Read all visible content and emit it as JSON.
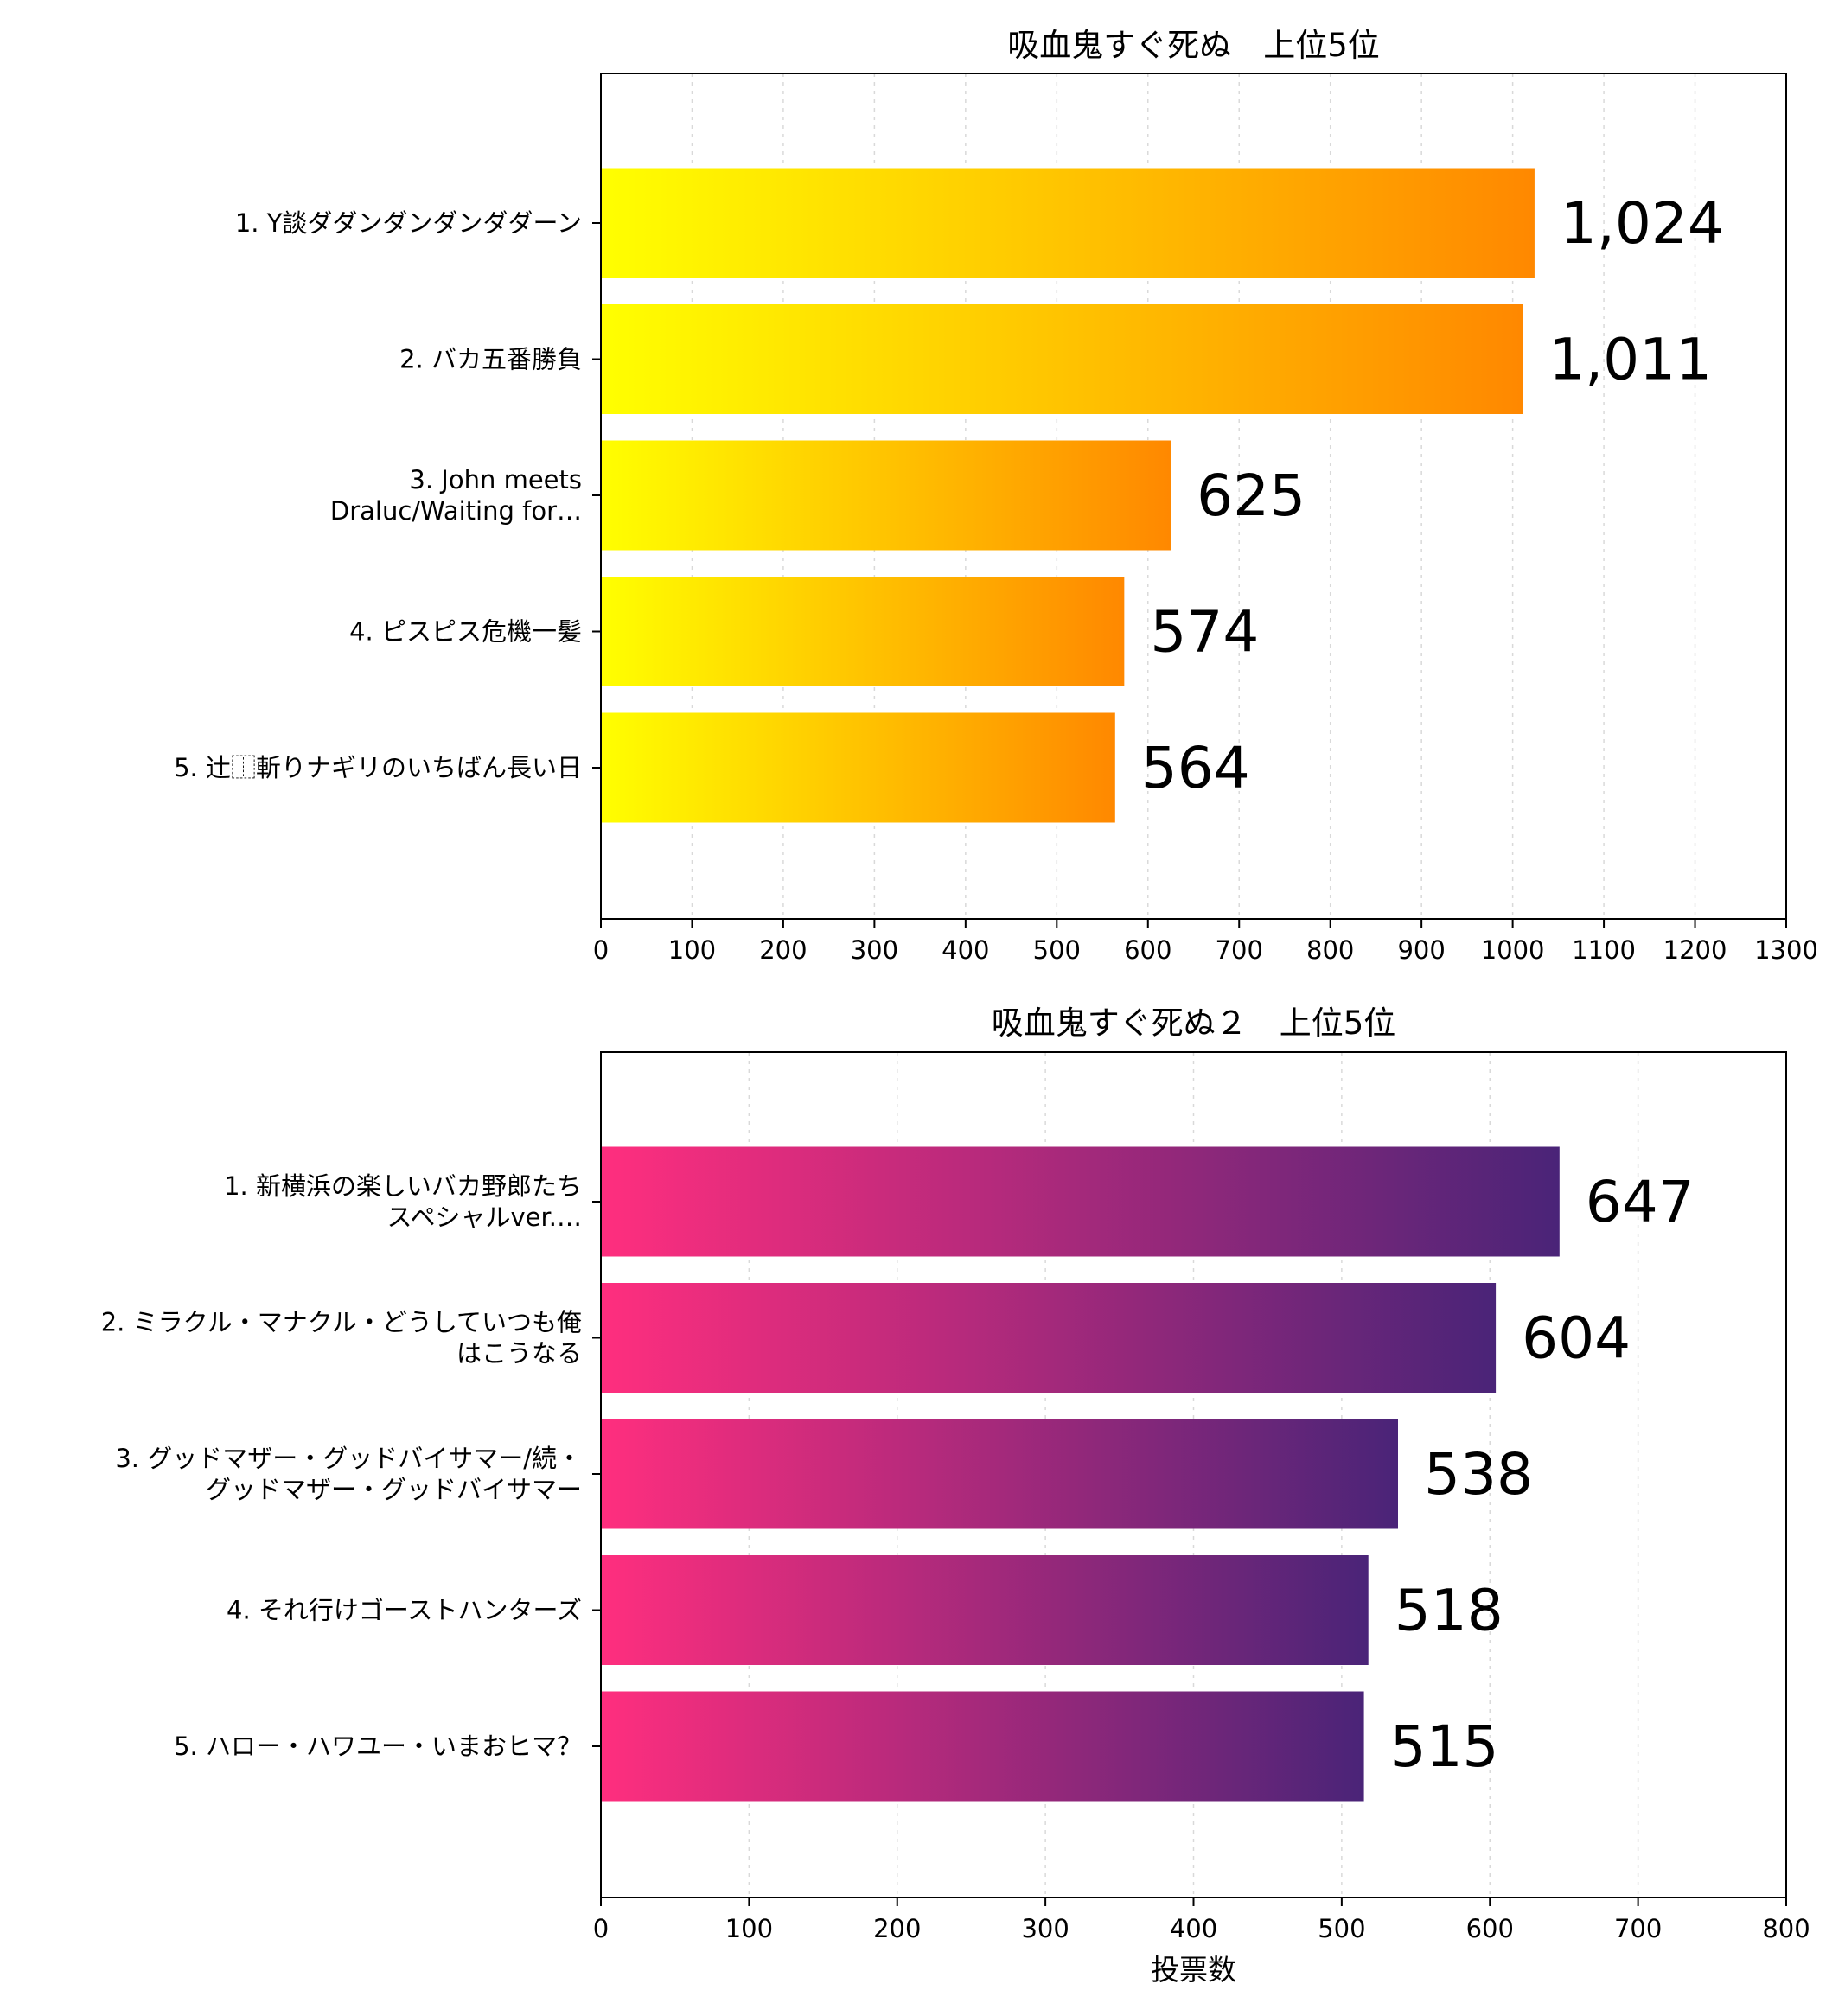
{
  "chart_data": [
    {
      "type": "bar",
      "orientation": "horizontal",
      "title": "吸血鬼すぐ死ぬ　上位5位",
      "categories": [
        [
          "1. Y談ダダンダンダンダダーン"
        ],
        [
          "2. バカ五番勝負"
        ],
        [
          "3. John meets",
          "Draluc/Waiting for…"
        ],
        [
          "4. ピスピス危機一髪"
        ],
        [
          "5. 辻⿰斬りナギリのいちばん長い日"
        ]
      ],
      "values": [
        1024,
        1011,
        625,
        574,
        564
      ],
      "value_labels": [
        "1,024",
        "1,011",
        "625",
        "574",
        "564"
      ],
      "xlim": [
        0,
        1300
      ],
      "xticks": [
        0,
        100,
        200,
        300,
        400,
        500,
        600,
        700,
        800,
        900,
        1000,
        1100,
        1200,
        1300
      ],
      "xlabel": "",
      "grid": "vertical dotted",
      "gradient": [
        "#ffff00",
        "#ff8800"
      ]
    },
    {
      "type": "bar",
      "orientation": "horizontal",
      "title": "吸血鬼すぐ死ぬ２　上位5位",
      "categories": [
        [
          "1. 新横浜の楽しいバカ野郎たち",
          "スペシャルver.…"
        ],
        [
          "2. ミラクル・マナクル・どうしていつも俺",
          "はこうなる"
        ],
        [
          "3. グッドマザー・グッドバイサマー/続・",
          "グッドマザー・グッドバイサマー"
        ],
        [
          "4. それ行けゴーストハンターズ"
        ],
        [
          "5. ハロー・ハワユー・いまおヒマ？"
        ]
      ],
      "values": [
        647,
        604,
        538,
        518,
        515
      ],
      "value_labels": [
        "647",
        "604",
        "538",
        "518",
        "515"
      ],
      "xlim": [
        0,
        800
      ],
      "xticks": [
        0,
        100,
        200,
        300,
        400,
        500,
        600,
        700,
        800
      ],
      "xlabel": "投票数",
      "grid": "vertical dotted",
      "gradient": [
        "#ff2e7e",
        "#4a2478"
      ]
    }
  ]
}
